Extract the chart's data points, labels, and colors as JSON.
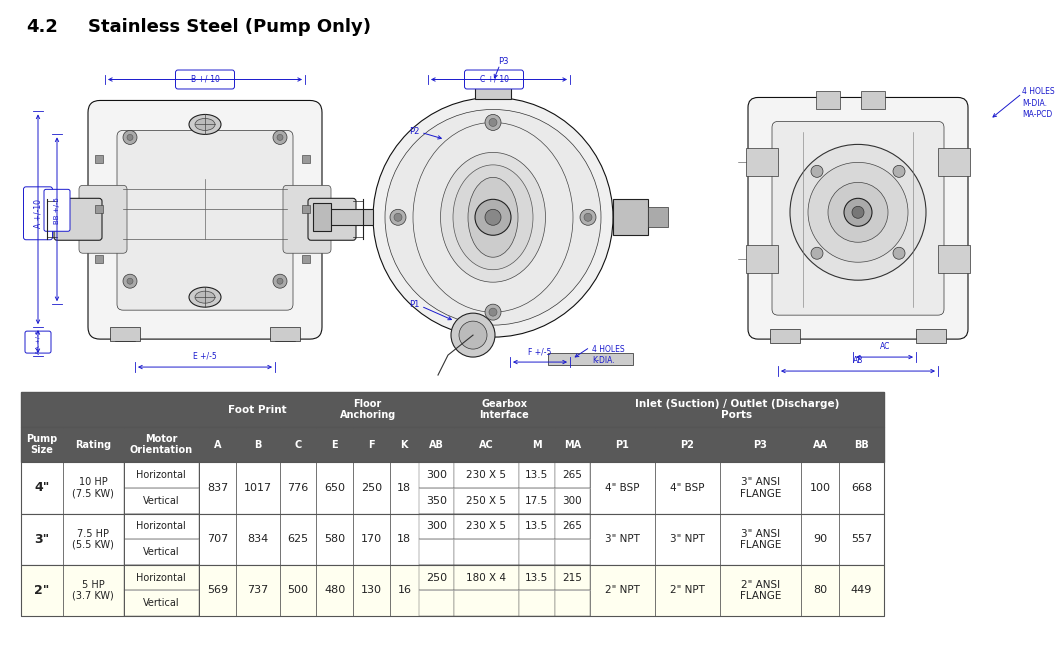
{
  "title_number": "4.2",
  "title_text": "Stainless Steel (Pump Only)",
  "title_fontsize": 13,
  "title_color": "#000000",
  "blue": "#1a1acd",
  "header_bg": "#595959",
  "header_fg": "#ffffff",
  "highlight_bg": "#fffff0",
  "normal_bg": "#ffffff",
  "border_dark": "#555555",
  "border_light": "#aaaaaa",
  "text_dark": "#222222",
  "col_widths": [
    4.0,
    5.8,
    7.2,
    3.5,
    4.2,
    3.5,
    3.5,
    3.5,
    2.8,
    3.3,
    6.2,
    3.5,
    3.3,
    6.2,
    6.2,
    7.8,
    3.6,
    4.3
  ],
  "col_labels": [
    "Pump\nSize",
    "Rating",
    "Motor\nOrientation",
    "A",
    "B",
    "C",
    "E",
    "F",
    "K",
    "AB",
    "AC",
    "M",
    "MA",
    "P1",
    "P2",
    "P3",
    "AA",
    "BB"
  ],
  "rows": [
    {
      "pump_size": "4\"",
      "rating": "10 HP\n(7.5 KW)",
      "orientation_h": "Horizontal",
      "orientation_v": "Vertical",
      "A": "837",
      "B": "1017",
      "C": "776",
      "E": "650",
      "F": "250",
      "K": "18",
      "AB_h": "300",
      "AB_v": "350",
      "AC_h": "230 X 5",
      "AC_v": "250 X 5",
      "M_h": "13.5",
      "M_v": "17.5",
      "MA_h": "265",
      "MA_v": "300",
      "P1": "4\" BSP",
      "P2": "4\" BSP",
      "P3": "3\" ANSI\nFLANGE",
      "AA": "100",
      "BB": "668",
      "highlight": false
    },
    {
      "pump_size": "3\"",
      "rating": "7.5 HP\n(5.5 KW)",
      "orientation_h": "Horizontal",
      "orientation_v": "Vertical",
      "A": "707",
      "B": "834",
      "C": "625",
      "E": "580",
      "F": "170",
      "K": "18",
      "AB_h": "300",
      "AB_v": "",
      "AC_h": "230 X 5",
      "AC_v": "",
      "M_h": "13.5",
      "M_v": "",
      "MA_h": "265",
      "MA_v": "",
      "P1": "3\" NPT",
      "P2": "3\" NPT",
      "P3": "3\" ANSI\nFLANGE",
      "AA": "90",
      "BB": "557",
      "highlight": false
    },
    {
      "pump_size": "2\"",
      "rating": "5 HP\n(3.7 KW)",
      "orientation_h": "Horizontal",
      "orientation_v": "Vertical",
      "A": "569",
      "B": "737",
      "C": "500",
      "E": "480",
      "F": "130",
      "K": "16",
      "AB_h": "250",
      "AB_v": "",
      "AC_h": "180 X 4",
      "AC_v": "",
      "M_h": "13.5",
      "M_v": "",
      "MA_h": "215",
      "MA_v": "",
      "P1": "2\" NPT",
      "P2": "2\" NPT",
      "P3": "2\" ANSI\nFLANGE",
      "AA": "80",
      "BB": "449",
      "highlight": true
    }
  ]
}
